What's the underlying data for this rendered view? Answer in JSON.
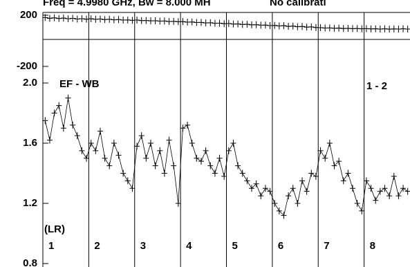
{
  "chart_data": [
    {
      "type": "line",
      "title": "Freq = 4.9980 GHz, Bw = 8.000 MH",
      "subtitle": "No calibrati",
      "marker": "plus",
      "color": "#000000",
      "ylim": [
        -200,
        200
      ],
      "yticks": [
        200,
        -200
      ],
      "values": [
        182,
        176,
        180,
        174,
        178,
        172,
        176,
        170,
        173,
        169,
        172,
        168,
        170,
        166,
        168,
        164,
        166,
        162,
        163,
        160,
        162,
        158,
        159,
        156,
        157,
        154,
        155,
        151,
        152,
        149,
        150,
        146,
        147,
        143,
        144,
        140,
        141,
        137,
        138,
        134,
        135,
        131,
        132,
        128,
        129,
        125,
        126,
        122,
        123,
        119,
        120,
        116,
        118,
        113,
        115,
        110,
        112,
        107,
        109,
        104,
        103,
        100,
        101,
        98,
        99,
        96,
        97,
        95,
        96,
        94,
        95,
        93,
        94,
        92,
        94,
        91,
        93,
        92,
        94,
        92
      ]
    },
    {
      "type": "line",
      "marker": "plus",
      "color": "#000000",
      "annotations": [
        "EF - WB",
        "1 - 2",
        "(LR)"
      ],
      "segment_labels": [
        "1",
        "2",
        "3",
        "4",
        "5",
        "6",
        "7",
        "8"
      ],
      "ylim": [
        0.8,
        2.0
      ],
      "yticks": [
        {
          "value": 2.0,
          "label": "2.0"
        },
        1.6,
        1.2,
        0.8
      ],
      "values": [
        1.75,
        1.62,
        1.8,
        1.85,
        1.7,
        1.9,
        1.72,
        1.65,
        1.55,
        1.5,
        1.6,
        1.55,
        1.68,
        1.5,
        1.45,
        1.6,
        1.52,
        1.4,
        1.35,
        1.3,
        1.58,
        1.65,
        1.5,
        1.6,
        1.45,
        1.55,
        1.4,
        1.62,
        1.45,
        1.2,
        1.7,
        1.72,
        1.6,
        1.5,
        1.48,
        1.55,
        1.45,
        1.4,
        1.5,
        1.38,
        1.55,
        1.6,
        1.45,
        1.4,
        1.35,
        1.3,
        1.33,
        1.25,
        1.3,
        1.28,
        1.2,
        1.15,
        1.12,
        1.25,
        1.3,
        1.2,
        1.35,
        1.28,
        1.4,
        1.38,
        1.55,
        1.5,
        1.6,
        1.45,
        1.48,
        1.35,
        1.4,
        1.3,
        1.2,
        1.15,
        1.35,
        1.3,
        1.22,
        1.28,
        1.3,
        1.25,
        1.38,
        1.25,
        1.3,
        1.28
      ]
    }
  ]
}
